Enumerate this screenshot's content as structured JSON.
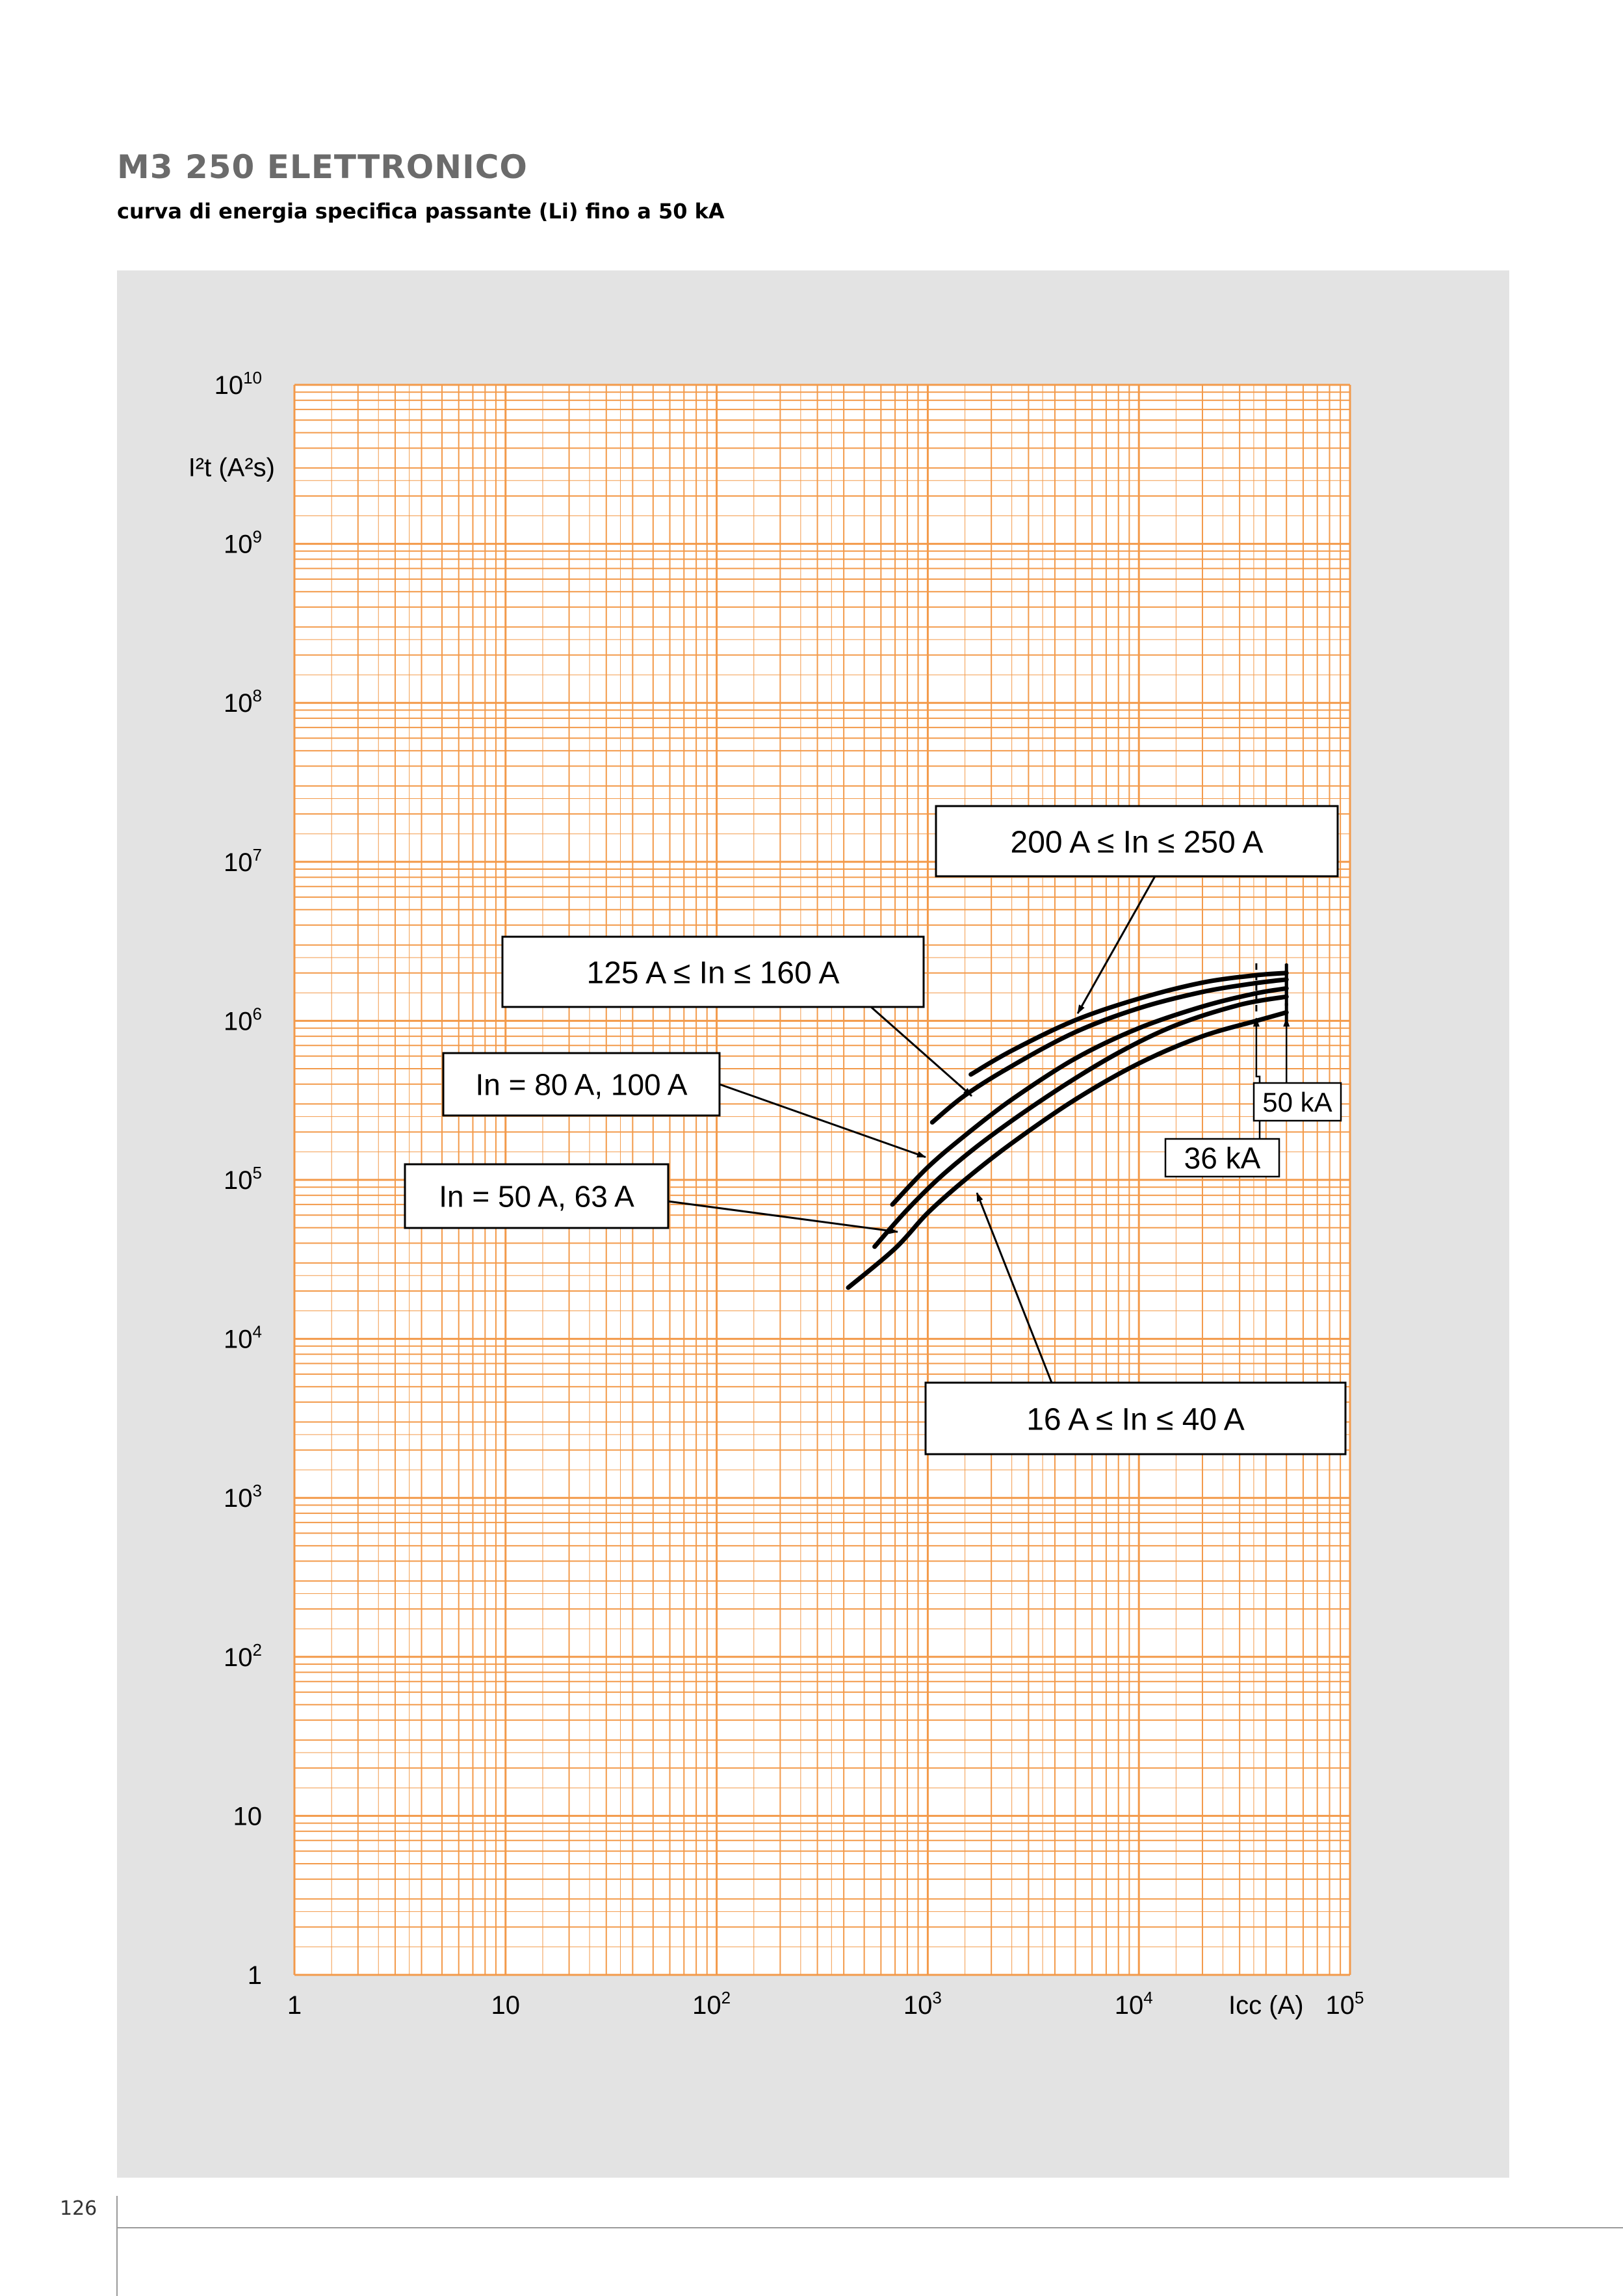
{
  "page": {
    "title": "M3 250 ELETTRONICO",
    "subtitle": "curva di energia specifica passante (Li) fino a 50 kA",
    "page_number": "126"
  },
  "chart_data": {
    "type": "line",
    "title": "",
    "xlabel": "Icc (A)",
    "ylabel": "I²t (A²s)",
    "xscale": "log",
    "yscale": "log",
    "xlim": [
      1,
      100000
    ],
    "ylim": [
      1,
      10000000000
    ],
    "grid": true,
    "grid_color": "#f39a4a",
    "curve_color": "#000000",
    "x_ticks": [
      {
        "value": 1,
        "base": "1",
        "exp": ""
      },
      {
        "value": 10,
        "base": "10",
        "exp": ""
      },
      {
        "value": 100,
        "base": "10",
        "exp": "2"
      },
      {
        "value": 1000,
        "base": "10",
        "exp": "3"
      },
      {
        "value": 10000,
        "base": "10",
        "exp": "4"
      },
      {
        "value": 100000,
        "base": "10",
        "exp": "5"
      }
    ],
    "y_ticks": [
      {
        "value": 1,
        "base": "1",
        "exp": ""
      },
      {
        "value": 10,
        "base": "10",
        "exp": ""
      },
      {
        "value": 100,
        "base": "10",
        "exp": "2"
      },
      {
        "value": 1000,
        "base": "10",
        "exp": "3"
      },
      {
        "value": 10000,
        "base": "10",
        "exp": "4"
      },
      {
        "value": 100000,
        "base": "10",
        "exp": "5"
      },
      {
        "value": 1000000,
        "base": "10",
        "exp": "6"
      },
      {
        "value": 10000000,
        "base": "10",
        "exp": "7"
      },
      {
        "value": 100000000,
        "base": "10",
        "exp": "8"
      },
      {
        "value": 1000000000,
        "base": "10",
        "exp": "9"
      },
      {
        "value": 10000000000,
        "base": "10",
        "exp": "10"
      }
    ],
    "series": [
      {
        "name": "16 A ≤ In ≤ 40 A",
        "x": [
          420,
          700,
          1000,
          1500,
          2500,
          5000,
          10000,
          20000,
          36000,
          50000
        ],
        "y": [
          21000,
          37000,
          62000,
          100000,
          170000,
          320000,
          540000,
          800000,
          1000000,
          1130000
        ]
      },
      {
        "name": "In = 50 A, 63 A",
        "x": [
          560,
          800,
          1200,
          2000,
          4000,
          8000,
          15000,
          30000,
          50000
        ],
        "y": [
          38000,
          65000,
          110000,
          190000,
          360000,
          630000,
          940000,
          1260000,
          1420000
        ]
      },
      {
        "name": "In = 80 A, 100 A",
        "x": [
          680,
          1000,
          1500,
          2500,
          5000,
          10000,
          20000,
          35000,
          50000
        ],
        "y": [
          70000,
          120000,
          190000,
          320000,
          580000,
          900000,
          1230000,
          1480000,
          1600000
        ]
      },
      {
        "name": "125 A ≤ In ≤ 160 A",
        "x": [
          1050,
          1500,
          2500,
          5000,
          10000,
          20000,
          35000,
          50000
        ],
        "y": [
          230000,
          340000,
          520000,
          850000,
          1200000,
          1520000,
          1720000,
          1820000
        ]
      },
      {
        "name": "200 A ≤ In ≤ 250 A",
        "x": [
          1600,
          2500,
          5000,
          10000,
          20000,
          35000,
          50000
        ],
        "y": [
          460000,
          650000,
          1010000,
          1380000,
          1740000,
          1930000,
          2000000
        ]
      }
    ],
    "annotations": [
      {
        "text": "200 A ≤ In ≤ 250 A",
        "points_to_series": "200 A ≤ In ≤ 250 A"
      },
      {
        "text": "125 A ≤ In ≤ 160 A",
        "points_to_series": "125 A ≤ In ≤ 160 A"
      },
      {
        "text": "In = 80 A, 100  A",
        "points_to_series": "In = 80 A, 100 A"
      },
      {
        "text": "In = 50 A, 63 A",
        "points_to_series": "In = 50 A, 63 A"
      },
      {
        "text": "16 A ≤ In ≤ 40 A",
        "points_to_series": "16 A ≤ In ≤ 40 A"
      },
      {
        "text": "36 kA",
        "marks_x": 36000
      },
      {
        "text": "50 kA",
        "marks_x": 50000
      }
    ]
  }
}
